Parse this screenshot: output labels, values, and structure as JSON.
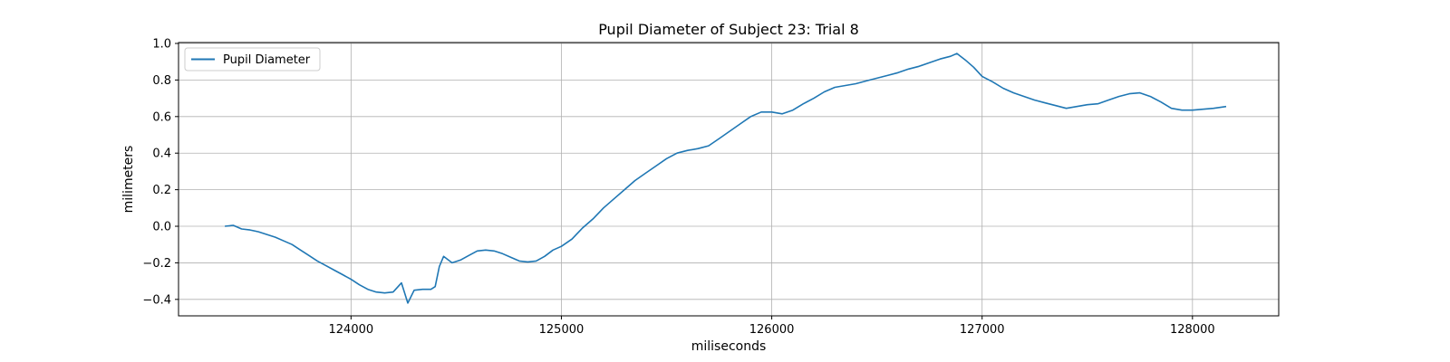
{
  "chart_data": {
    "type": "line",
    "title": "Pupil Diameter of Subject 23: Trial 8",
    "xlabel": "miliseconds",
    "ylabel": "milimeters",
    "xlim": [
      123180,
      128410
    ],
    "ylim": [
      -0.49,
      1.005
    ],
    "x_ticks": [
      124000,
      125000,
      126000,
      127000,
      128000
    ],
    "x_tick_labels": [
      "124000",
      "125000",
      "126000",
      "127000",
      "128000"
    ],
    "y_ticks": [
      -0.4,
      -0.2,
      0.0,
      0.2,
      0.4,
      0.6,
      0.8,
      1.0
    ],
    "y_tick_labels": [
      "−0.4",
      "−0.2",
      "0.0",
      "0.2",
      "0.4",
      "0.6",
      "0.8",
      "1.0"
    ],
    "grid": true,
    "legend_position": "top-left",
    "series": [
      {
        "name": "Pupil Diameter",
        "color": "#1f77b4",
        "x": [
          123400,
          123440,
          123480,
          123520,
          123560,
          123600,
          123640,
          123680,
          123720,
          123760,
          123800,
          123840,
          123880,
          123920,
          123960,
          124000,
          124040,
          124080,
          124120,
          124160,
          124200,
          124240,
          124270,
          124300,
          124340,
          124380,
          124400,
          124420,
          124440,
          124480,
          124520,
          124560,
          124600,
          124640,
          124680,
          124720,
          124760,
          124800,
          124840,
          124880,
          124920,
          124960,
          125000,
          125050,
          125100,
          125150,
          125200,
          125250,
          125300,
          125350,
          125400,
          125450,
          125500,
          125550,
          125600,
          125650,
          125700,
          125750,
          125800,
          125850,
          125900,
          125950,
          126000,
          126050,
          126100,
          126150,
          126200,
          126250,
          126300,
          126350,
          126400,
          126450,
          126500,
          126550,
          126600,
          126650,
          126700,
          126750,
          126800,
          126850,
          126880,
          126920,
          126960,
          127000,
          127050,
          127100,
          127150,
          127200,
          127250,
          127300,
          127350,
          127400,
          127450,
          127500,
          127550,
          127600,
          127650,
          127700,
          127750,
          127800,
          127850,
          127900,
          127950,
          128000,
          128050,
          128100,
          128160
        ],
        "y": [
          0.0,
          0.005,
          -0.015,
          -0.02,
          -0.03,
          -0.045,
          -0.06,
          -0.08,
          -0.1,
          -0.13,
          -0.16,
          -0.19,
          -0.215,
          -0.24,
          -0.265,
          -0.29,
          -0.32,
          -0.345,
          -0.36,
          -0.365,
          -0.36,
          -0.31,
          -0.42,
          -0.35,
          -0.345,
          -0.345,
          -0.33,
          -0.22,
          -0.165,
          -0.2,
          -0.185,
          -0.16,
          -0.135,
          -0.13,
          -0.135,
          -0.15,
          -0.17,
          -0.19,
          -0.195,
          -0.19,
          -0.165,
          -0.13,
          -0.11,
          -0.07,
          -0.01,
          0.04,
          0.1,
          0.15,
          0.2,
          0.25,
          0.29,
          0.33,
          0.37,
          0.4,
          0.415,
          0.425,
          0.44,
          0.48,
          0.52,
          0.56,
          0.6,
          0.625,
          0.625,
          0.615,
          0.635,
          0.67,
          0.7,
          0.735,
          0.76,
          0.77,
          0.78,
          0.795,
          0.81,
          0.825,
          0.84,
          0.86,
          0.875,
          0.895,
          0.915,
          0.93,
          0.945,
          0.91,
          0.87,
          0.82,
          0.79,
          0.755,
          0.73,
          0.71,
          0.69,
          0.675,
          0.66,
          0.645,
          0.655,
          0.665,
          0.67,
          0.69,
          0.71,
          0.725,
          0.73,
          0.71,
          0.68,
          0.645,
          0.635,
          0.635,
          0.64,
          0.645,
          0.655
        ]
      }
    ]
  }
}
